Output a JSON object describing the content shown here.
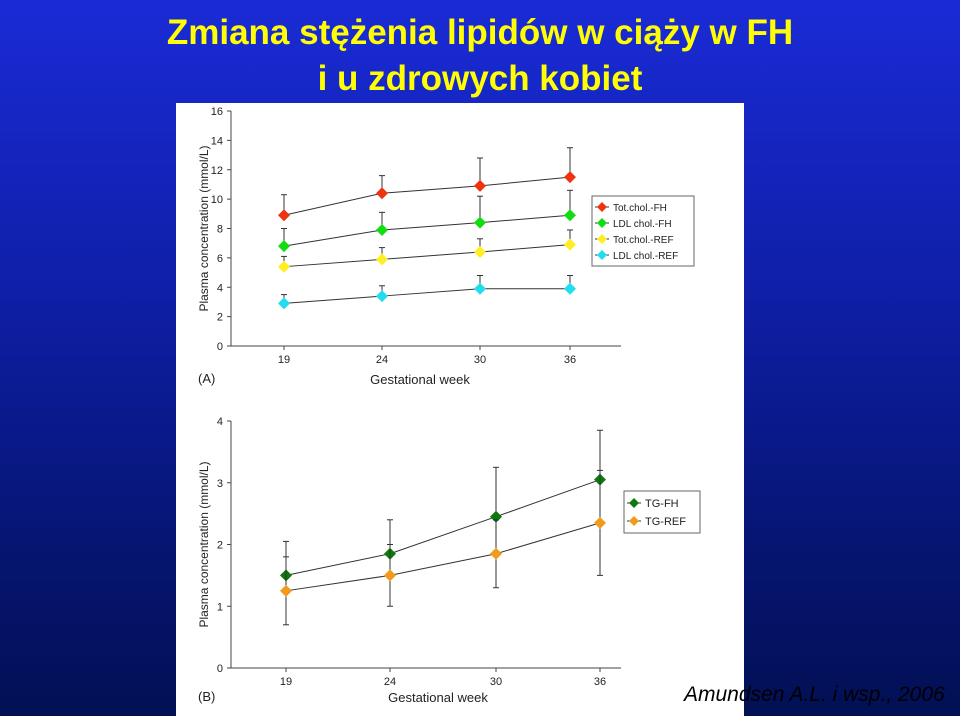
{
  "slide": {
    "title_line1": "Zmiana stężenia lipidów w ciąży w FH",
    "title_line2": "i u zdrowych kobiet",
    "citation": "Amundsen A.L. i wsp., 2006",
    "background_color": "#0f1fa8",
    "title_color": "#ffff00"
  },
  "chart_data": [
    {
      "type": "line",
      "panel_label": "(A)",
      "xlabel": "Gestational week",
      "ylabel": "Plasma concentration (mmol/L)",
      "categories": [
        "19",
        "24",
        "30",
        "36"
      ],
      "ylim": [
        0,
        16
      ],
      "yticks": [
        "0",
        "2",
        "4",
        "6",
        "8",
        "10",
        "12",
        "14",
        "16"
      ],
      "legend_position": "right",
      "grid": false,
      "series": [
        {
          "name": "Tot.chol.-FH",
          "color": "#ee3311",
          "values": [
            8.9,
            10.4,
            10.9,
            11.5
          ],
          "err": [
            1.4,
            1.2,
            1.9,
            2.0
          ]
        },
        {
          "name": "LDL chol.-FH",
          "color": "#11dd11",
          "values": [
            6.8,
            7.9,
            8.4,
            8.9
          ],
          "err": [
            1.2,
            1.2,
            1.8,
            1.7
          ]
        },
        {
          "name": "Tot.chol.-REF",
          "color": "#ffee22",
          "values": [
            5.4,
            5.9,
            6.4,
            6.9
          ],
          "err": [
            0.7,
            0.8,
            0.9,
            1.0
          ]
        },
        {
          "name": "LDL chol.-REF",
          "color": "#22ddee",
          "values": [
            2.9,
            3.4,
            3.9,
            3.9
          ],
          "err": [
            0.6,
            0.7,
            0.9,
            0.9
          ]
        }
      ]
    },
    {
      "type": "line",
      "panel_label": "(B)",
      "xlabel": "Gestational week",
      "ylabel": "Plasma concentration (mmol/L)",
      "categories": [
        "19",
        "24",
        "30",
        "36"
      ],
      "ylim": [
        0,
        4
      ],
      "yticks": [
        "0",
        "1",
        "2",
        "3",
        "4"
      ],
      "legend_position": "right",
      "grid": false,
      "series": [
        {
          "name": "TG-FH",
          "color": "#0e7a0e",
          "values": [
            1.5,
            1.85,
            2.45,
            3.05
          ],
          "err": [
            0.55,
            0.55,
            0.8,
            0.8
          ]
        },
        {
          "name": "TG-REF",
          "color": "#f29a1c",
          "values": [
            1.25,
            1.5,
            1.85,
            2.35
          ],
          "err": [
            0.55,
            0.5,
            0.55,
            0.85
          ]
        }
      ]
    }
  ]
}
